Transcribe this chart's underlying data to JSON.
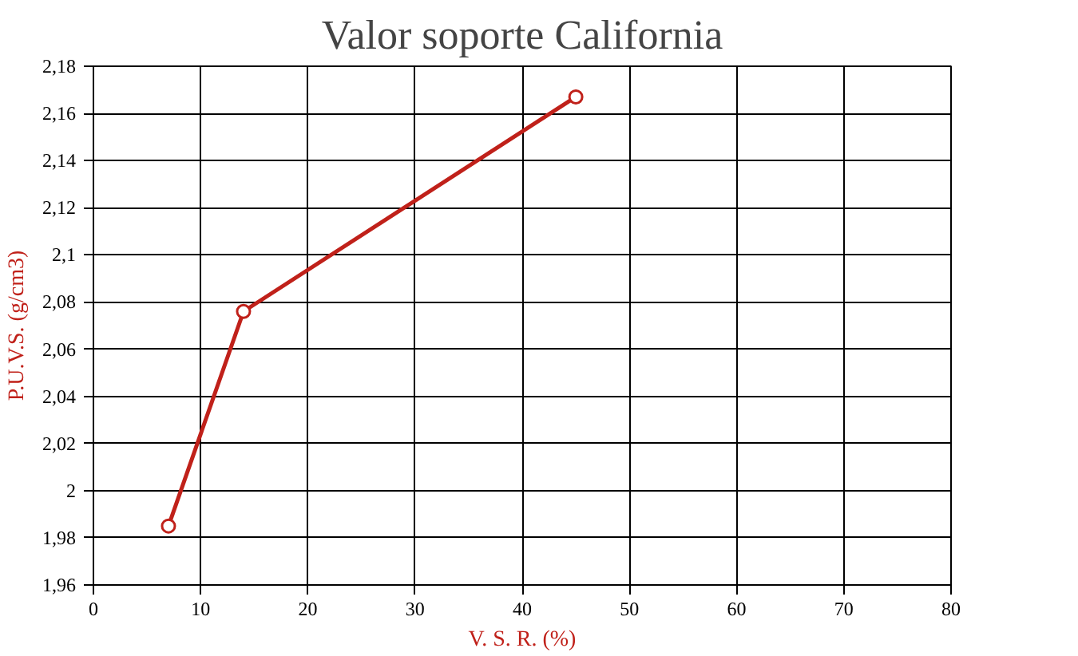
{
  "chart_data": {
    "type": "line",
    "title": "Valor soporte California",
    "xlabel": "V. S. R. (%)",
    "ylabel": "P.U.V.S. (g/cm3)",
    "x": [
      7,
      14,
      45
    ],
    "series": [
      {
        "color": "#c0211a",
        "values": [
          1.985,
          2.076,
          2.167
        ]
      }
    ],
    "marker": "circle",
    "line_style": "solid",
    "grid": true,
    "xlim": [
      0,
      80
    ],
    "xticks": [
      0,
      10,
      20,
      30,
      40,
      50,
      60,
      70,
      80
    ],
    "ylim": [
      1.96,
      2.18
    ],
    "yticks": [
      {
        "value": 1.96,
        "label": "1,96"
      },
      {
        "value": 1.98,
        "label": "1,98"
      },
      {
        "value": 2.0,
        "label": "2"
      },
      {
        "value": 2.02,
        "label": "2,02"
      },
      {
        "value": 2.04,
        "label": "2,04"
      },
      {
        "value": 2.06,
        "label": "2,06"
      },
      {
        "value": 2.08,
        "label": "2,08"
      },
      {
        "value": 2.1,
        "label": "2,1"
      },
      {
        "value": 2.12,
        "label": "2,12"
      },
      {
        "value": 2.14,
        "label": "2,14"
      },
      {
        "value": 2.16,
        "label": "2,16"
      },
      {
        "value": 2.18,
        "label": "2,18"
      }
    ]
  }
}
